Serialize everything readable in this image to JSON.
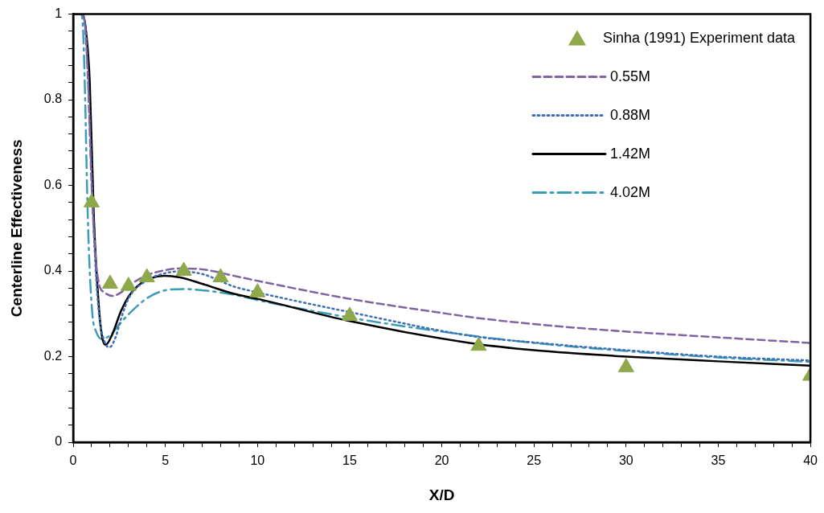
{
  "chart_data": {
    "type": "line",
    "xlabel": "X/D",
    "ylabel": "Centerline Effectiveness",
    "xlim": [
      0,
      40
    ],
    "ylim": [
      0,
      1
    ],
    "xticks": [
      0,
      {
        "value": 1,
        "label": null
      },
      {
        "value": 2,
        "label": null
      },
      {
        "value": 3,
        "label": null
      },
      {
        "value": 4,
        "label": null
      },
      5,
      {
        "value": 6,
        "label": null
      },
      {
        "value": 7,
        "label": null
      },
      {
        "value": 8,
        "label": null
      },
      {
        "value": 9,
        "label": null
      },
      10,
      {
        "value": 11,
        "label": null
      },
      {
        "value": 12,
        "label": null
      },
      {
        "value": 13,
        "label": null
      },
      {
        "value": 14,
        "label": null
      },
      15,
      {
        "value": 16,
        "label": null
      },
      {
        "value": 17,
        "label": null
      },
      {
        "value": 18,
        "label": null
      },
      {
        "value": 19,
        "label": null
      },
      20,
      {
        "value": 21,
        "label": null
      },
      {
        "value": 22,
        "label": null
      },
      {
        "value": 23,
        "label": null
      },
      {
        "value": 24,
        "label": null
      },
      25,
      {
        "value": 26,
        "label": null
      },
      {
        "value": 27,
        "label": null
      },
      {
        "value": 28,
        "label": null
      },
      {
        "value": 29,
        "label": null
      },
      30,
      {
        "value": 31,
        "label": null
      },
      {
        "value": 32,
        "label": null
      },
      {
        "value": 33,
        "label": null
      },
      {
        "value": 34,
        "label": null
      },
      35,
      {
        "value": 36,
        "label": null
      },
      {
        "value": 37,
        "label": null
      },
      {
        "value": 38,
        "label": null
      },
      {
        "value": 39,
        "label": null
      },
      40
    ],
    "yticks": [
      0,
      {
        "value": 0.04,
        "label": null
      },
      {
        "value": 0.08,
        "label": null
      },
      {
        "value": 0.12,
        "label": null
      },
      {
        "value": 0.16,
        "label": null
      },
      0.2,
      {
        "value": 0.24,
        "label": null
      },
      {
        "value": 0.28,
        "label": null
      },
      {
        "value": 0.32,
        "label": null
      },
      {
        "value": 0.36,
        "label": null
      },
      0.4,
      {
        "value": 0.44,
        "label": null
      },
      {
        "value": 0.48,
        "label": null
      },
      {
        "value": 0.52,
        "label": null
      },
      {
        "value": 0.56,
        "label": null
      },
      0.6,
      {
        "value": 0.64,
        "label": null
      },
      {
        "value": 0.68,
        "label": null
      },
      {
        "value": 0.72,
        "label": null
      },
      {
        "value": 0.76,
        "label": null
      },
      0.8,
      {
        "value": 0.84,
        "label": null
      },
      {
        "value": 0.88,
        "label": null
      },
      {
        "value": 0.92,
        "label": null
      },
      {
        "value": 0.96,
        "label": null
      },
      1
    ],
    "legend": "top right",
    "series": [
      {
        "name": "Sinha (1991) Experiment data",
        "type": "scatter",
        "marker": "triangle",
        "color": "#8ea84a",
        "x": [
          1,
          2,
          3,
          4,
          6,
          8,
          10,
          15,
          22,
          30,
          40
        ],
        "values": [
          0.56,
          0.37,
          0.365,
          0.385,
          0.4,
          0.385,
          0.35,
          0.295,
          0.225,
          0.175,
          0.155
        ]
      },
      {
        "name": "0.55M",
        "type": "line",
        "marker": "none",
        "line_style": "dashed",
        "color": "#8064a2",
        "x": [
          0,
          0.5,
          0.65,
          0.8,
          1.0,
          1.2,
          1.4,
          1.7,
          2.15,
          2.6,
          3.0,
          4,
          5,
          5.8,
          7,
          8.7,
          10,
          15,
          20,
          21.8,
          25,
          28.9,
          35,
          40
        ],
        "values": [
          1,
          1,
          0.97,
          0.85,
          0.6,
          0.44,
          0.37,
          0.35,
          0.342,
          0.35,
          0.365,
          0.39,
          0.402,
          0.406,
          0.404,
          0.389,
          0.377,
          0.335,
          0.302,
          0.291,
          0.276,
          0.262,
          0.245,
          0.232
        ]
      },
      {
        "name": "0.88M",
        "type": "line",
        "marker": "none",
        "line_style": "dotted",
        "color": "#3f6fb5",
        "x": [
          0,
          0.5,
          0.65,
          0.8,
          1.0,
          1.2,
          1.4,
          1.7,
          1.97,
          2.3,
          2.59,
          3.03,
          4,
          5,
          5.8,
          7,
          8.7,
          10,
          15,
          21.8,
          25,
          30,
          35,
          40
        ],
        "values": [
          1,
          1,
          0.97,
          0.86,
          0.62,
          0.42,
          0.3,
          0.235,
          0.222,
          0.245,
          0.288,
          0.338,
          0.378,
          0.395,
          0.399,
          0.393,
          0.364,
          0.35,
          0.304,
          0.247,
          0.233,
          0.215,
          0.2,
          0.191
        ]
      },
      {
        "name": "1.42M",
        "type": "line",
        "marker": "none",
        "line_style": "solid",
        "color": "#000000",
        "x": [
          0,
          0.5,
          0.7,
          0.9,
          1.12,
          1.41,
          1.6,
          1.78,
          2.1,
          2.59,
          3.0,
          3.47,
          4.2,
          4.94,
          5.8,
          7,
          8.7,
          10,
          15,
          21.8,
          25,
          30,
          35,
          40
        ],
        "values": [
          1,
          1,
          0.96,
          0.84,
          0.527,
          0.307,
          0.24,
          0.228,
          0.25,
          0.306,
          0.34,
          0.364,
          0.383,
          0.389,
          0.385,
          0.37,
          0.347,
          0.335,
          0.283,
          0.23,
          0.215,
          0.2,
          0.189,
          0.179
        ]
      },
      {
        "name": "4.02M",
        "type": "line",
        "marker": "none",
        "line_style": "dashdot",
        "color": "#3d9cb8",
        "x": [
          0,
          0.45,
          0.55,
          0.65,
          0.75,
          0.85,
          1.04,
          1.26,
          1.56,
          2.0,
          2.5,
          3.03,
          4.06,
          5,
          5.97,
          7,
          8.69,
          10,
          16,
          21.8,
          25,
          30,
          35,
          40
        ],
        "values": [
          1,
          1,
          0.95,
          0.8,
          0.6,
          0.45,
          0.3,
          0.257,
          0.241,
          0.25,
          0.275,
          0.3,
          0.338,
          0.355,
          0.358,
          0.355,
          0.345,
          0.332,
          0.284,
          0.248,
          0.232,
          0.213,
          0.198,
          0.188
        ]
      }
    ]
  }
}
